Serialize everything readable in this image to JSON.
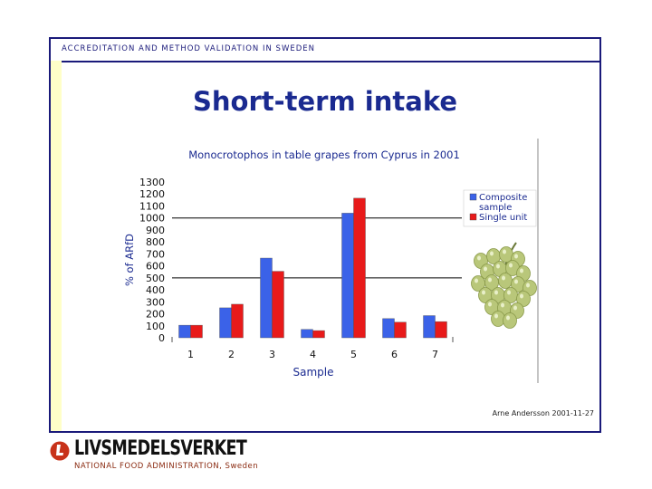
{
  "header": {
    "text": "ACCREDITATION AND METHOD VALIDATION IN SWEDEN"
  },
  "slide": {
    "title": "Short-term intake",
    "date_label": "Arne Andersson 2001-11-27"
  },
  "logo": {
    "wordmark": "LIVSMEDELSVERKET",
    "subtitle": "NATIONAL FOOD ADMINISTRATION, Sweden"
  },
  "images": {
    "grapes": "grape-bunch-photo"
  },
  "colors": {
    "composite": "#3b62e8",
    "single": "#e81a1a",
    "title": "#1a2a90",
    "frame": "#1a1a7a"
  },
  "chart_data": {
    "type": "bar",
    "title": "Monocrotophos in table grapes from Cyprus in 2001",
    "xlabel": "Sample",
    "ylabel": "% of ARfD",
    "categories": [
      "1",
      "2",
      "3",
      "4",
      "5",
      "6",
      "7"
    ],
    "series": [
      {
        "name": "Composite sample",
        "values": [
          105,
          250,
          665,
          70,
          1040,
          160,
          185
        ]
      },
      {
        "name": "Single unit",
        "values": [
          105,
          280,
          555,
          60,
          1165,
          130,
          135
        ]
      }
    ],
    "ylim": [
      0,
      1300
    ],
    "yticks": [
      0,
      100,
      200,
      300,
      400,
      500,
      600,
      700,
      800,
      900,
      1000,
      1100,
      1200,
      1300
    ],
    "reference_lines": [
      500,
      1000
    ],
    "legend_position": "right"
  }
}
